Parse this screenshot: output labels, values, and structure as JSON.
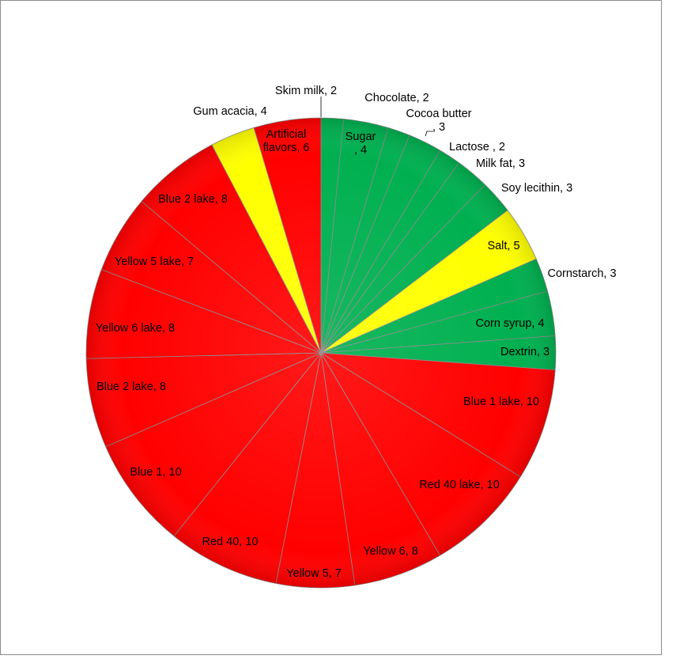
{
  "chart_data": {
    "type": "pie",
    "title": "",
    "colors": {
      "red": "#ff0000",
      "green": "#00b050",
      "yellow": "#ffff00"
    },
    "slices": [
      {
        "name": "Skim milk",
        "value": 2,
        "color": "green",
        "label_lines": [
          "Skim milk, 2"
        ]
      },
      {
        "name": "Sugar",
        "value": 4,
        "color": "green",
        "label_lines": [
          "Sugar",
          ", 4"
        ]
      },
      {
        "name": "Chocolate",
        "value": 2,
        "color": "green",
        "label_lines": [
          "Chocolate, 2"
        ]
      },
      {
        "name": "Cocoa butter",
        "value": 3,
        "color": "green",
        "label_lines": [
          "Cocoa butter",
          ", 3"
        ]
      },
      {
        "name": "Lactose",
        "value": 2,
        "color": "green",
        "label_lines": [
          "Lactose            , 2"
        ]
      },
      {
        "name": "Milk fat",
        "value": 3,
        "color": "green",
        "label_lines": [
          "Milk fat, 3"
        ]
      },
      {
        "name": "Soy lecithin",
        "value": 3,
        "color": "green",
        "label_lines": [
          "Soy lecithin, 3"
        ]
      },
      {
        "name": "Salt",
        "value": 5,
        "color": "yellow",
        "label_lines": [
          "Salt, 5"
        ]
      },
      {
        "name": "Cornstarch",
        "value": 3,
        "color": "green",
        "label_lines": [
          "Cornstarch, 3"
        ]
      },
      {
        "name": "Corn syrup",
        "value": 4,
        "color": "green",
        "label_lines": [
          "Corn syrup, 4"
        ]
      },
      {
        "name": "Dextrin",
        "value": 3,
        "color": "green",
        "label_lines": [
          "Dextrin, 3"
        ]
      },
      {
        "name": "Blue 1 lake",
        "value": 10,
        "color": "red",
        "label_lines": [
          "Blue 1 lake, 10"
        ]
      },
      {
        "name": "Red 40 lake",
        "value": 10,
        "color": "red",
        "label_lines": [
          "Red 40 lake, 10"
        ]
      },
      {
        "name": "Yellow 6",
        "value": 8,
        "color": "red",
        "label_lines": [
          "Yellow 6, 8"
        ]
      },
      {
        "name": "Yellow 5",
        "value": 7,
        "color": "red",
        "label_lines": [
          "Yellow 5, 7"
        ]
      },
      {
        "name": "Red 40",
        "value": 10,
        "color": "red",
        "label_lines": [
          "Red 40, 10"
        ]
      },
      {
        "name": "Blue 1",
        "value": 10,
        "color": "red",
        "label_lines": [
          "Blue 1, 10"
        ]
      },
      {
        "name": "Blue 2 lake",
        "value": 8,
        "color": "red",
        "label_lines": [
          "Blue 2 lake, 8"
        ]
      },
      {
        "name": "Yellow 6 lake",
        "value": 8,
        "color": "red",
        "label_lines": [
          "Yellow 6 lake, 8"
        ]
      },
      {
        "name": "Yellow 5 lake",
        "value": 7,
        "color": "red",
        "label_lines": [
          "Yellow 5 lake, 7"
        ]
      },
      {
        "name": "Blue 2 lake",
        "value": 8,
        "color": "red",
        "label_lines": [
          "Blue 2 lake, 8"
        ]
      },
      {
        "name": "Gum acacia",
        "value": 4,
        "color": "yellow",
        "label_lines": [
          "Gum acacia, 4"
        ]
      },
      {
        "name": "Artificial flavors",
        "value": 6,
        "color": "red",
        "label_lines": [
          "Artificial",
          "flavors, 6"
        ]
      }
    ]
  }
}
